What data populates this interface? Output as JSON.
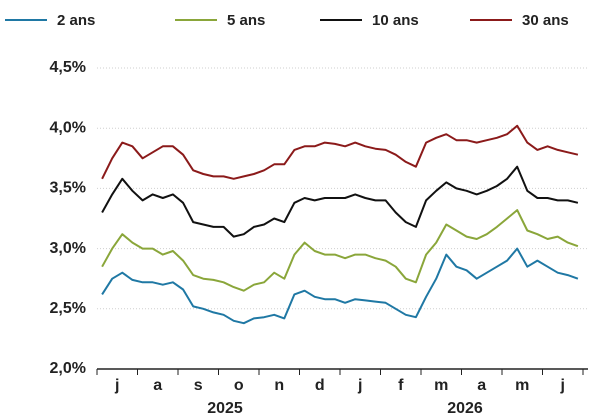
{
  "chart_data": {
    "type": "line",
    "categories": [
      null,
      "j",
      null,
      null,
      null,
      "a",
      null,
      null,
      null,
      "s",
      null,
      null,
      null,
      "o",
      null,
      null,
      null,
      "n",
      null,
      null,
      null,
      "d",
      null,
      null,
      null,
      "j",
      null,
      null,
      null,
      "f",
      null,
      null,
      null,
      "m",
      null,
      null,
      null,
      "a",
      null,
      null,
      null,
      "m",
      null,
      null,
      null,
      "j",
      null,
      null
    ],
    "year_labels": [
      "2025",
      "2026"
    ],
    "ylim": [
      2.0,
      4.5
    ],
    "yticks": [
      {
        "value": 2.0,
        "label": "2,0%"
      },
      {
        "value": 2.5,
        "label": "2,5%"
      },
      {
        "value": 3.0,
        "label": "3,0%"
      },
      {
        "value": 3.5,
        "label": "3,5%"
      },
      {
        "value": 4.0,
        "label": "4,0%"
      },
      {
        "value": 4.5,
        "label": "4,5%"
      }
    ],
    "grid": true,
    "series": [
      {
        "name": "2 ans",
        "color": "#1f78a4",
        "values": [
          2.62,
          2.75,
          2.8,
          2.74,
          2.72,
          2.72,
          2.7,
          2.72,
          2.66,
          2.52,
          2.5,
          2.47,
          2.45,
          2.4,
          2.38,
          2.42,
          2.43,
          2.45,
          2.42,
          2.62,
          2.65,
          2.6,
          2.58,
          2.58,
          2.55,
          2.58,
          2.57,
          2.56,
          2.55,
          2.5,
          2.45,
          2.43,
          2.6,
          2.75,
          2.95,
          2.85,
          2.82,
          2.75,
          2.8,
          2.85,
          2.9,
          3.0,
          2.85,
          2.9,
          2.85,
          2.8,
          2.78,
          2.75
        ]
      },
      {
        "name": "5 ans",
        "color": "#8aa63a",
        "values": [
          2.85,
          3.0,
          3.12,
          3.05,
          3.0,
          3.0,
          2.95,
          2.98,
          2.9,
          2.78,
          2.75,
          2.74,
          2.72,
          2.68,
          2.65,
          2.7,
          2.72,
          2.8,
          2.75,
          2.95,
          3.05,
          2.98,
          2.95,
          2.95,
          2.92,
          2.95,
          2.95,
          2.92,
          2.9,
          2.85,
          2.75,
          2.72,
          2.95,
          3.05,
          3.2,
          3.15,
          3.1,
          3.08,
          3.12,
          3.18,
          3.25,
          3.32,
          3.15,
          3.12,
          3.08,
          3.1,
          3.05,
          3.02
        ]
      },
      {
        "name": "10 ans",
        "color": "#111111",
        "values": [
          3.3,
          3.45,
          3.58,
          3.48,
          3.4,
          3.45,
          3.42,
          3.45,
          3.38,
          3.22,
          3.2,
          3.18,
          3.18,
          3.1,
          3.12,
          3.18,
          3.2,
          3.25,
          3.22,
          3.38,
          3.42,
          3.4,
          3.42,
          3.42,
          3.42,
          3.45,
          3.42,
          3.4,
          3.4,
          3.3,
          3.22,
          3.18,
          3.4,
          3.48,
          3.55,
          3.5,
          3.48,
          3.45,
          3.48,
          3.52,
          3.58,
          3.68,
          3.48,
          3.42,
          3.42,
          3.4,
          3.4,
          3.38
        ]
      },
      {
        "name": "30 ans",
        "color": "#8b1a1a",
        "values": [
          3.58,
          3.75,
          3.88,
          3.85,
          3.75,
          3.8,
          3.85,
          3.85,
          3.78,
          3.65,
          3.62,
          3.6,
          3.6,
          3.58,
          3.6,
          3.62,
          3.65,
          3.7,
          3.7,
          3.82,
          3.85,
          3.85,
          3.88,
          3.87,
          3.85,
          3.88,
          3.85,
          3.83,
          3.82,
          3.78,
          3.72,
          3.68,
          3.88,
          3.92,
          3.95,
          3.9,
          3.9,
          3.88,
          3.9,
          3.92,
          3.95,
          4.02,
          3.88,
          3.82,
          3.85,
          3.82,
          3.8,
          3.78
        ]
      }
    ]
  }
}
